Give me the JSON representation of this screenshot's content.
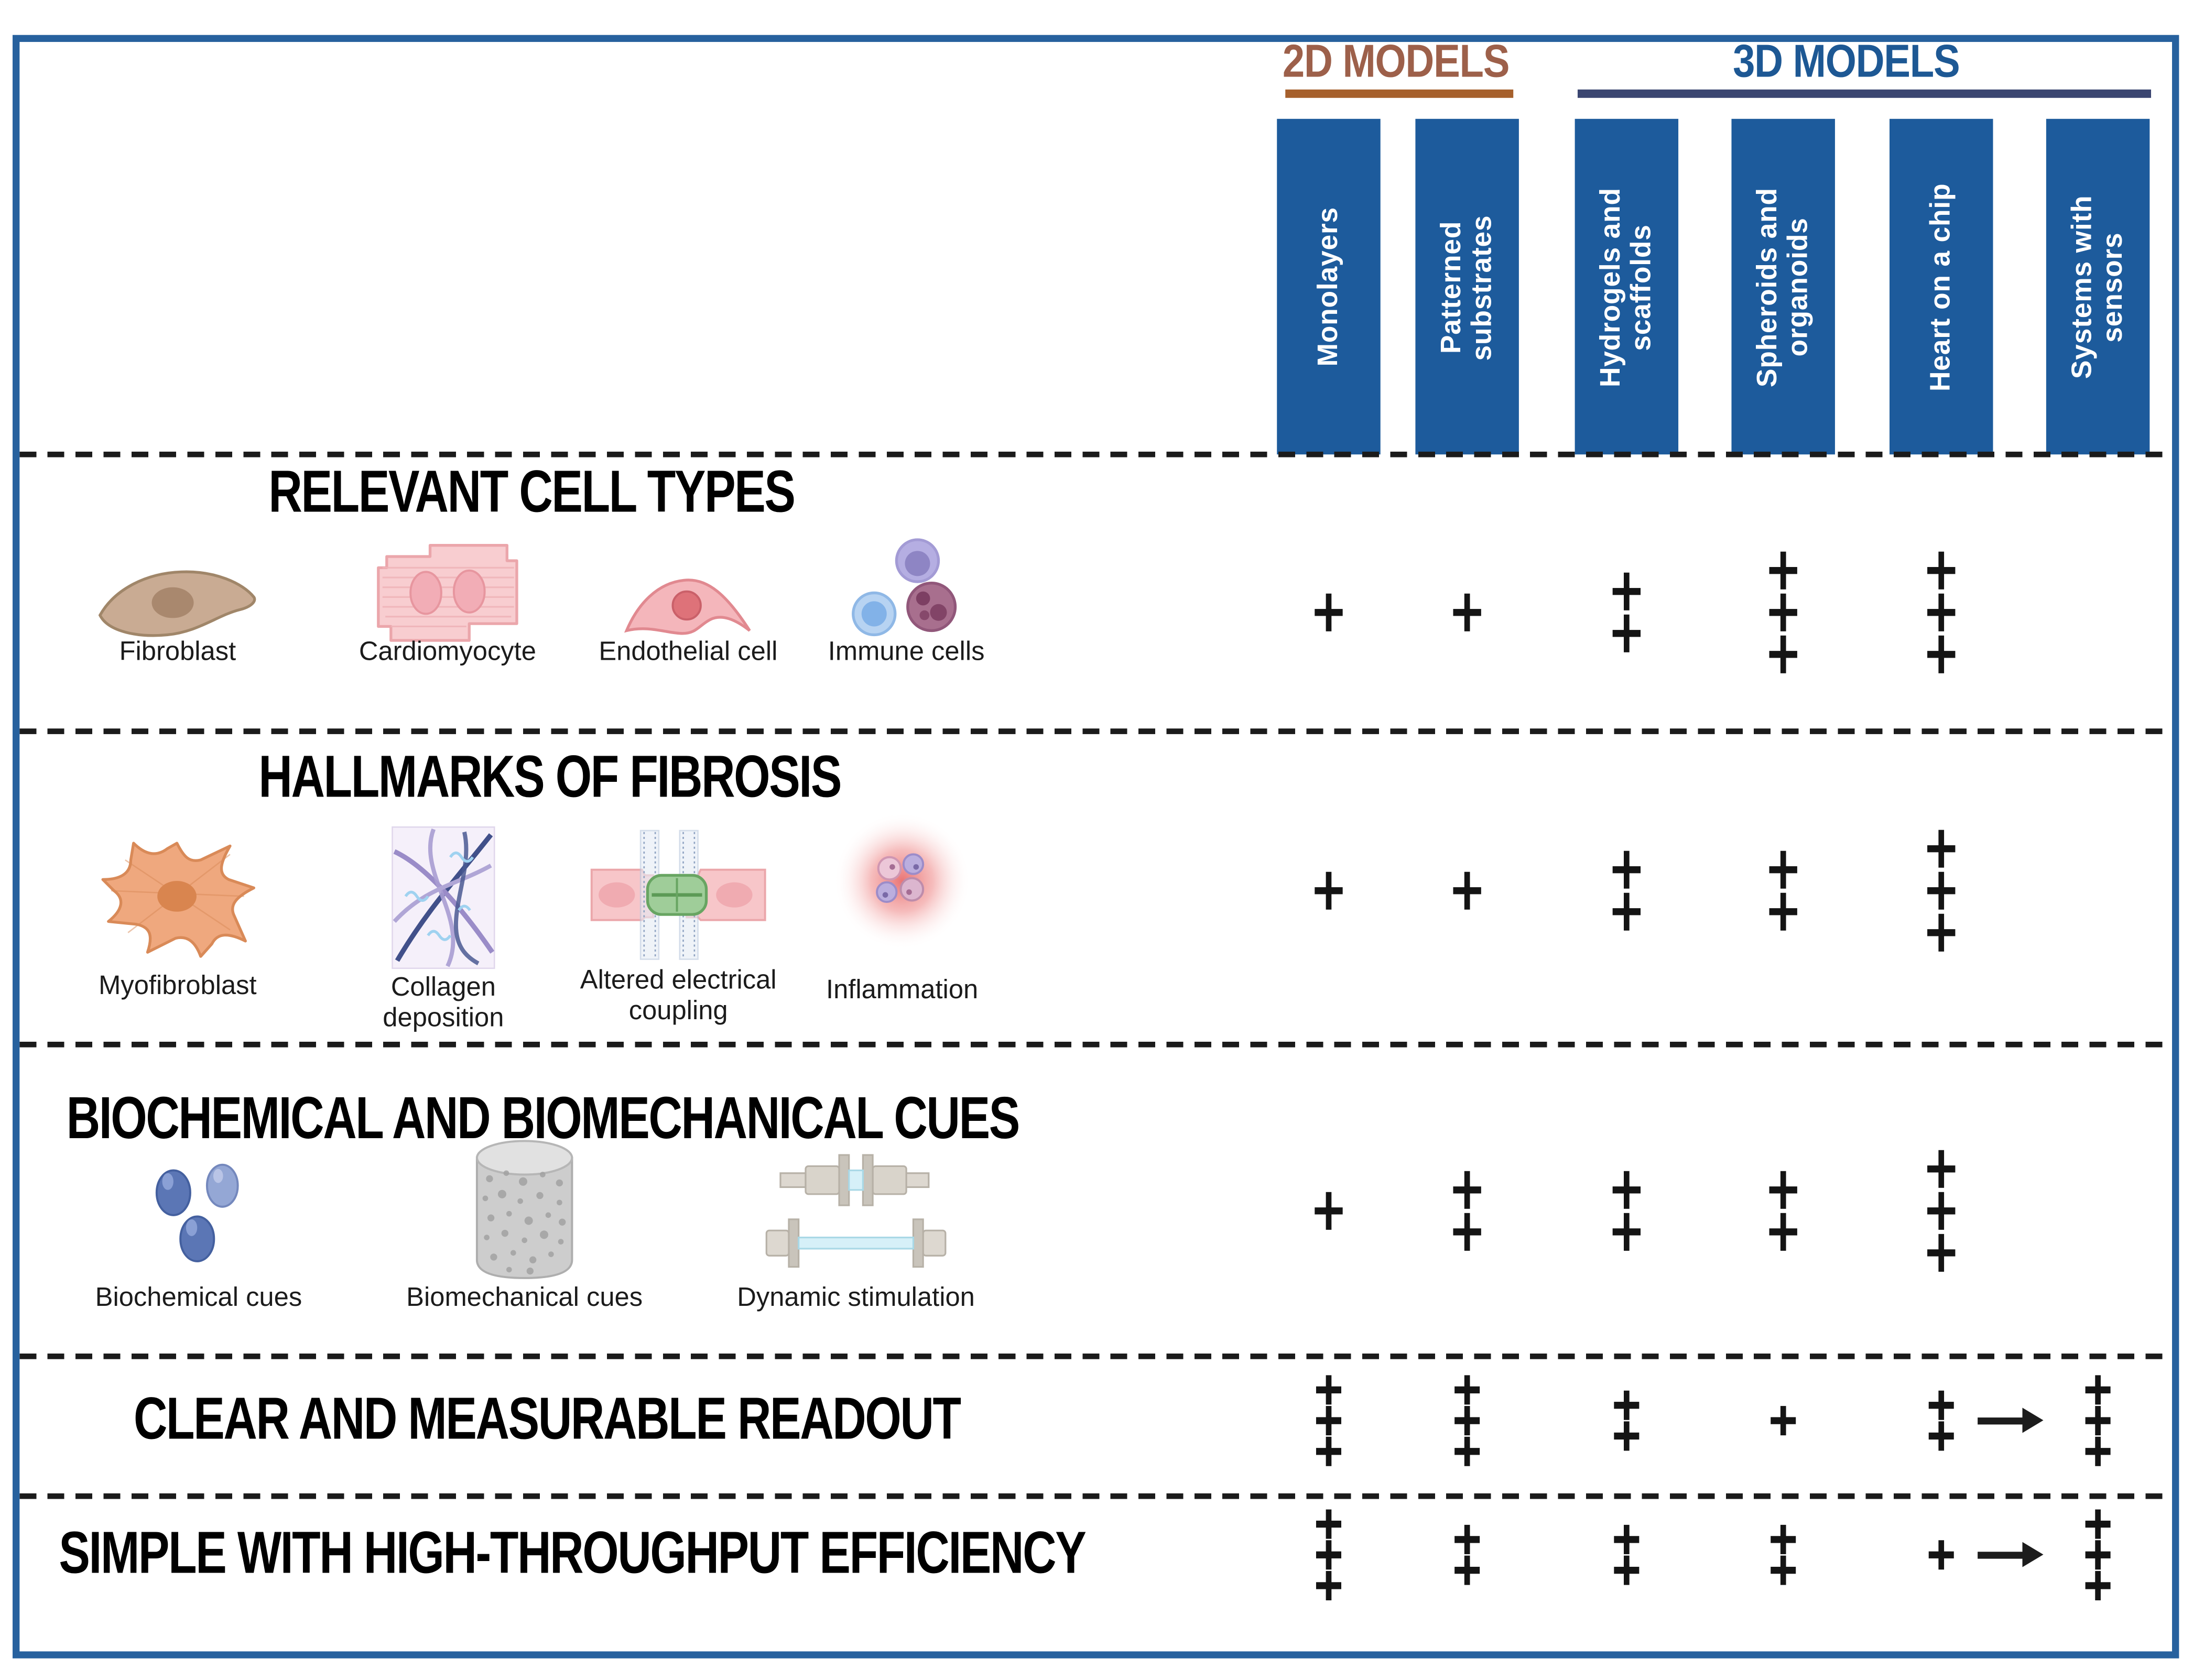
{
  "colors": {
    "frame_blue": "#27619e",
    "column_box_blue": "#1d5b9c",
    "label_2d_brown": "#9d604a",
    "underline_2d_brown": "#a6602c",
    "label_3d_blue": "#1d5894",
    "underline_3d_navy": "#3b4671",
    "plus_black": "#141414",
    "dash_black": "#1b1b1b"
  },
  "header": {
    "group_2d": {
      "label": "2D MODELS"
    },
    "group_3d": {
      "label": "3D MODELS"
    },
    "columns": [
      {
        "id": "monolayers",
        "label": "Monolayers",
        "group": "2D"
      },
      {
        "id": "patterned-substrates",
        "label": "Patterned substrates",
        "group": "2D"
      },
      {
        "id": "hydrogels-and-scaffolds",
        "label": "Hydrogels and scaffolds",
        "group": "3D"
      },
      {
        "id": "spheroids-and-organoids",
        "label": "Spheroids and organoids",
        "group": "3D"
      },
      {
        "id": "heart-on-a-chip",
        "label": "Heart on a chip",
        "group": "3D"
      },
      {
        "id": "systems-with-sensors",
        "label": "Systems with sensors",
        "group": "3D"
      }
    ]
  },
  "rows": [
    {
      "id": "relevant-cell-types",
      "title": "RELEVANT CELL TYPES",
      "icons": [
        {
          "name": "fibroblast-icon",
          "label": "Fibroblast"
        },
        {
          "name": "cardiomyocyte-icon",
          "label": "Cardiomyocyte"
        },
        {
          "name": "endothelial-cell-icon",
          "label": "Endothelial cell"
        },
        {
          "name": "immune-cells-icon",
          "label": "Immune cells"
        }
      ],
      "ratings": [
        "+",
        "+",
        "++",
        "+++",
        "+++",
        ""
      ]
    },
    {
      "id": "hallmarks-of-fibrosis",
      "title": "HALLMARKS OF FIBROSIS",
      "icons": [
        {
          "name": "myofibroblast-icon",
          "label": "Myofibroblast"
        },
        {
          "name": "collagen-deposition-icon",
          "label": "Collagen deposition"
        },
        {
          "name": "altered-electrical-coupling-icon",
          "label": "Altered electrical coupling"
        },
        {
          "name": "inflammation-icon",
          "label": "Inflammation"
        }
      ],
      "ratings": [
        "+",
        "+",
        "++",
        "++",
        "+++",
        ""
      ]
    },
    {
      "id": "biochemical-and-biomechanical-cues",
      "title": "BIOCHEMICAL AND BIOMECHANICAL CUES",
      "icons": [
        {
          "name": "biochemical-cues-icon",
          "label": "Biochemical cues"
        },
        {
          "name": "biomechanical-cues-icon",
          "label": "Biomechanical cues"
        },
        {
          "name": "dynamic-stimulation-icon",
          "label": "Dynamic stimulation"
        }
      ],
      "ratings": [
        "+",
        "++",
        "++",
        "++",
        "+++",
        ""
      ]
    },
    {
      "id": "clear-and-measurable-readout",
      "title": "CLEAR AND MEASURABLE READOUT",
      "icons": [],
      "ratings": [
        "+++",
        "+++",
        "++",
        "+",
        "++",
        "+++"
      ],
      "arrow_from": "heart-on-a-chip",
      "arrow_to": "systems-with-sensors"
    },
    {
      "id": "simple-with-high-throughput-efficiency",
      "title": "SIMPLE WITH HIGH-THROUGHPUT EFFICIENCY",
      "icons": [],
      "ratings": [
        "+++",
        "++",
        "++",
        "++",
        "+",
        "+++"
      ],
      "arrow_from": "heart-on-a-chip",
      "arrow_to": "systems-with-sensors"
    }
  ]
}
